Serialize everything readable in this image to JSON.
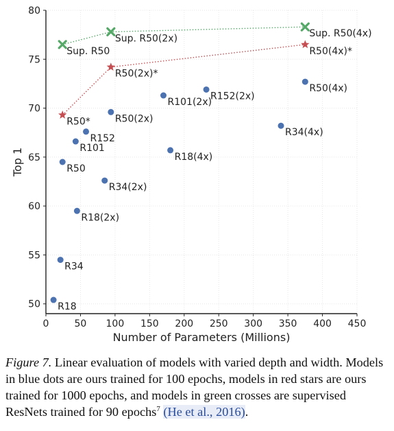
{
  "chart_data": {
    "type": "scatter",
    "xlabel": "Number of Parameters (Millions)",
    "ylabel": "Top 1",
    "xlim": [
      0,
      450
    ],
    "ylim": [
      49,
      80
    ],
    "x_ticks": [
      0,
      50,
      100,
      150,
      200,
      250,
      300,
      350,
      400,
      450
    ],
    "y_ticks": [
      50,
      55,
      60,
      65,
      70,
      75,
      80
    ],
    "grid": true,
    "series": [
      {
        "marker": "dot",
        "color": "#4c72b0",
        "points": [
          {
            "label": "R18",
            "x": 11,
            "y": 50.4
          },
          {
            "label": "R34",
            "x": 21,
            "y": 54.5
          },
          {
            "label": "R50",
            "x": 24,
            "y": 64.5
          },
          {
            "label": "R101",
            "x": 43,
            "y": 66.6
          },
          {
            "label": "R152",
            "x": 58,
            "y": 67.6
          },
          {
            "label": "R18(2x)",
            "x": 45,
            "y": 59.5
          },
          {
            "label": "R34(2x)",
            "x": 85,
            "y": 62.6
          },
          {
            "label": "R50(2x)",
            "x": 94,
            "y": 69.6
          },
          {
            "label": "R101(2x)",
            "x": 170,
            "y": 71.3
          },
          {
            "label": "R152(2x)",
            "x": 232,
            "y": 71.9
          },
          {
            "label": "R18(4x)",
            "x": 180,
            "y": 65.7
          },
          {
            "label": "R34(4x)",
            "x": 340,
            "y": 68.2
          },
          {
            "label": "R50(4x)",
            "x": 375,
            "y": 72.7
          }
        ]
      },
      {
        "marker": "star",
        "color": "#c44e52",
        "line": "dotted",
        "points": [
          {
            "label": "R50*",
            "x": 24,
            "y": 69.3
          },
          {
            "label": "R50(2x)*",
            "x": 94,
            "y": 74.2
          },
          {
            "label": "R50(4x)*",
            "x": 375,
            "y": 76.5
          }
        ]
      },
      {
        "marker": "cross",
        "color": "#55a868",
        "line": "dotted",
        "points": [
          {
            "label": "Sup. R50",
            "x": 24,
            "y": 76.5
          },
          {
            "label": "Sup. R50(2x)",
            "x": 94,
            "y": 77.8
          },
          {
            "label": "Sup. R50(4x)",
            "x": 375,
            "y": 78.3
          }
        ]
      }
    ]
  },
  "caption": {
    "figure_label": "Figure 7.",
    "text": " Linear evaluation of models with varied depth and width. Models in blue dots are ours trained for 100 epochs, models in red stars are ours trained for 1000 epochs, and models in green crosses are supervised ResNets trained for 90 epochs",
    "footnote_mark": "7",
    "citation": "(He et al., 2016)",
    "end": "."
  }
}
